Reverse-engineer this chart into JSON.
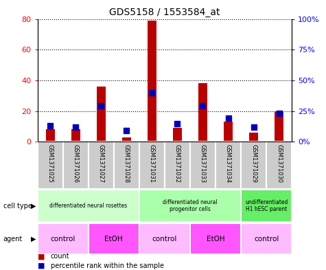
{
  "title": "GDS5158 / 1553584_at",
  "samples": [
    "GSM1371025",
    "GSM1371026",
    "GSM1371027",
    "GSM1371028",
    "GSM1371031",
    "GSM1371032",
    "GSM1371033",
    "GSM1371034",
    "GSM1371029",
    "GSM1371030"
  ],
  "counts": [
    8,
    8,
    36,
    3,
    79,
    9,
    38,
    13,
    6,
    20
  ],
  "percentile_ranks": [
    13,
    12,
    29,
    9,
    40,
    15,
    29,
    19,
    12,
    23
  ],
  "ylim_left": [
    0,
    80
  ],
  "ylim_right": [
    0,
    100
  ],
  "yticks_left": [
    0,
    20,
    40,
    60,
    80
  ],
  "yticks_right": [
    0,
    25,
    50,
    75,
    100
  ],
  "ytick_labels_left": [
    "0",
    "20",
    "40",
    "60",
    "80"
  ],
  "ytick_labels_right": [
    "0%",
    "25%",
    "50%",
    "75%",
    "100%"
  ],
  "bar_color": "#bb0000",
  "dot_color": "#0000bb",
  "cell_type_groups": [
    {
      "label": "differentiated neural rosettes",
      "start": 0,
      "end": 4,
      "color": "#ccffcc"
    },
    {
      "label": "differentiated neural\nprogenitor cells",
      "start": 4,
      "end": 8,
      "color": "#aaffaa"
    },
    {
      "label": "undifferentiated\nH1 hESC parent",
      "start": 8,
      "end": 10,
      "color": "#66ee66"
    }
  ],
  "agent_groups": [
    {
      "label": "control",
      "start": 0,
      "end": 2,
      "color": "#ffbbff"
    },
    {
      "label": "EtOH",
      "start": 2,
      "end": 4,
      "color": "#ff55ff"
    },
    {
      "label": "control",
      "start": 4,
      "end": 6,
      "color": "#ffbbff"
    },
    {
      "label": "EtOH",
      "start": 6,
      "end": 8,
      "color": "#ff55ff"
    },
    {
      "label": "control",
      "start": 8,
      "end": 10,
      "color": "#ffbbff"
    }
  ],
  "bar_width": 0.35,
  "dot_size": 30,
  "sample_bg_color": "#cccccc",
  "sample_bg_edge": "#ffffff",
  "legend_count_label": "count",
  "legend_percentile_label": "percentile rank within the sample",
  "cell_type_label": "cell type",
  "agent_label": "agent"
}
